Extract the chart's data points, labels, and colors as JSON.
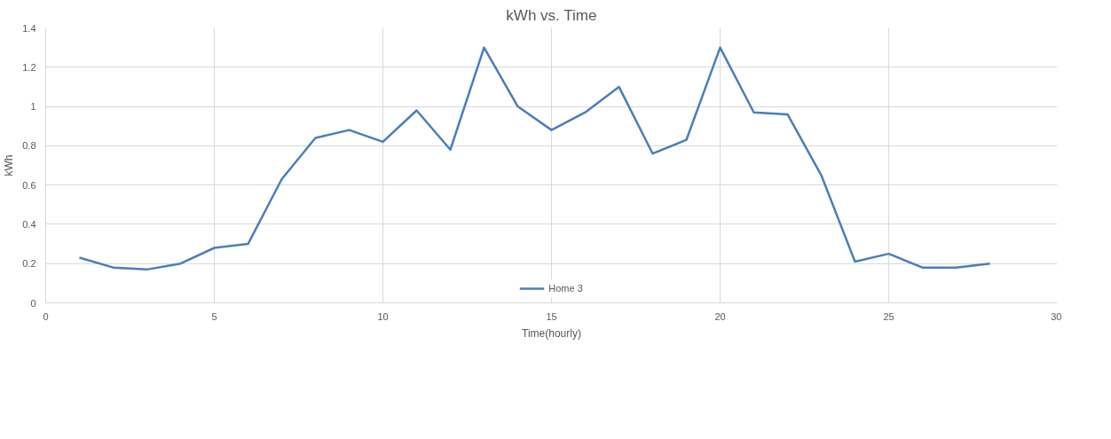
{
  "chart_data": {
    "type": "line",
    "title": "kWh vs. Time",
    "xlabel": "Time(hourly)",
    "ylabel": "kWh",
    "x": [
      1,
      2,
      3,
      4,
      5,
      6,
      7,
      8,
      9,
      10,
      11,
      12,
      13,
      14,
      15,
      16,
      17,
      18,
      19,
      20,
      21,
      22,
      23,
      24,
      25,
      26,
      27,
      28
    ],
    "series": [
      {
        "name": "Home 3",
        "color": "#4a7ebb",
        "values": [
          0.23,
          0.18,
          0.17,
          0.2,
          0.28,
          0.3,
          0.63,
          0.84,
          0.88,
          0.82,
          0.98,
          0.78,
          1.3,
          1.0,
          0.88,
          0.97,
          1.1,
          0.76,
          0.83,
          1.3,
          0.97,
          0.96,
          0.65,
          0.21,
          0.25,
          0.18,
          0.18,
          0.2
        ]
      }
    ],
    "xlim": [
      0,
      30
    ],
    "xticks": [
      0,
      5,
      10,
      15,
      20,
      25,
      30
    ],
    "ylim": [
      0,
      1.4
    ],
    "yticks": [
      0,
      0.2,
      0.4,
      0.6,
      0.8,
      1,
      1.2,
      1.4
    ],
    "grid": true,
    "legend": "bottom",
    "marker": "none",
    "line_style": "solid"
  }
}
